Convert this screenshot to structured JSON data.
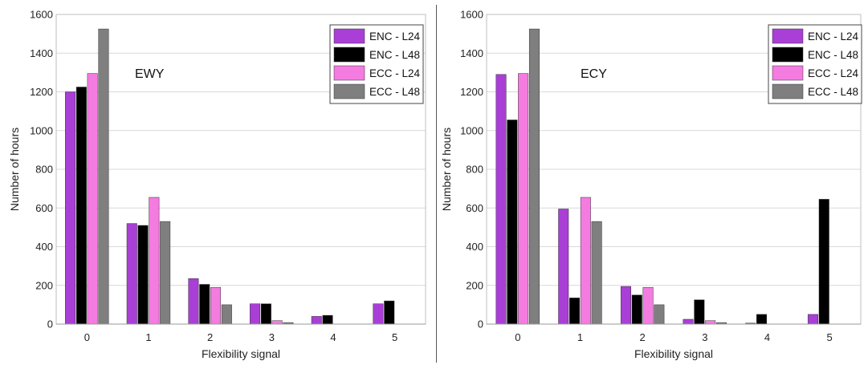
{
  "chart_data": [
    {
      "type": "bar",
      "annotation": "EWY",
      "xlabel": "Flexibility signal",
      "ylabel": "Number of hours",
      "categories": [
        "0",
        "1",
        "2",
        "3",
        "4",
        "5"
      ],
      "ylim": [
        0,
        1600
      ],
      "yticks": [
        0,
        200,
        400,
        600,
        800,
        1000,
        1200,
        1400,
        1600
      ],
      "grid": true,
      "legend": "top-right",
      "series": [
        {
          "name": "ENC - L24",
          "color": "#a93fd6",
          "values": [
            1200,
            520,
            235,
            105,
            40,
            105
          ]
        },
        {
          "name": "ENC - L48",
          "color": "#000000",
          "values": [
            1225,
            510,
            205,
            105,
            45,
            120
          ]
        },
        {
          "name": "ECC - L24",
          "color": "#f47be0",
          "values": [
            1295,
            655,
            190,
            18,
            0,
            0
          ]
        },
        {
          "name": "ECC - L48",
          "color": "#7f7f7f",
          "values": [
            1525,
            530,
            100,
            8,
            0,
            0
          ]
        }
      ]
    },
    {
      "type": "bar",
      "annotation": "ECY",
      "xlabel": "Flexibility signal",
      "ylabel": "Number of hours",
      "categories": [
        "0",
        "1",
        "2",
        "3",
        "4",
        "5"
      ],
      "ylim": [
        0,
        1600
      ],
      "yticks": [
        0,
        200,
        400,
        600,
        800,
        1000,
        1200,
        1400,
        1600
      ],
      "grid": true,
      "legend": "top-right",
      "series": [
        {
          "name": "ENC - L24",
          "color": "#a93fd6",
          "values": [
            1290,
            595,
            195,
            25,
            5,
            50
          ]
        },
        {
          "name": "ENC - L48",
          "color": "#000000",
          "values": [
            1055,
            135,
            150,
            125,
            50,
            645
          ]
        },
        {
          "name": "ECC - L24",
          "color": "#f47be0",
          "values": [
            1295,
            655,
            190,
            18,
            0,
            0
          ]
        },
        {
          "name": "ECC - L48",
          "color": "#7f7f7f",
          "values": [
            1525,
            530,
            100,
            8,
            0,
            0
          ]
        }
      ]
    }
  ]
}
